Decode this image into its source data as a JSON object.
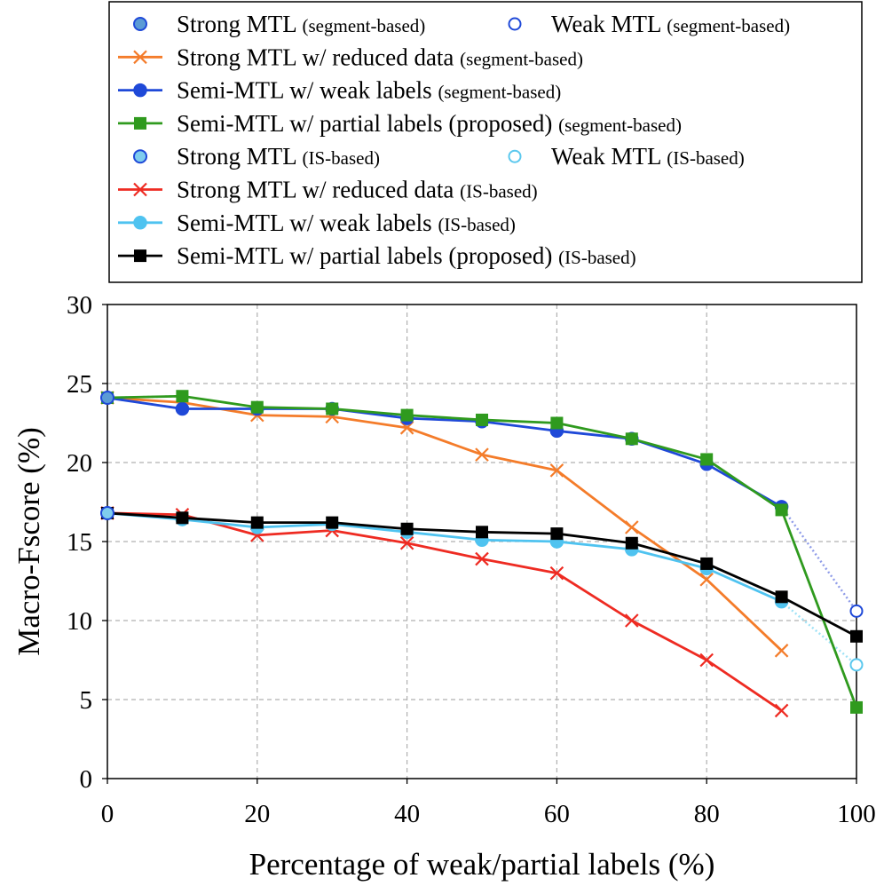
{
  "chart_data": {
    "type": "line",
    "title": "",
    "xlabel": "Percentage of weak/partial labels (%)",
    "ylabel": "Macro-Fscore (%)",
    "xlim": [
      0,
      100
    ],
    "ylim": [
      0,
      30
    ],
    "xticks": [
      0,
      20,
      40,
      60,
      80,
      100
    ],
    "yticks": [
      0,
      5,
      10,
      15,
      20,
      25,
      30
    ],
    "grid": true,
    "legend_position": "top (above plot)",
    "series": [
      {
        "name": "Strong MTL",
        "suffix": "(segment-based)",
        "color": "#5b9bd5",
        "marker": "circle-filled-outline",
        "line": "none",
        "x": [
          0
        ],
        "values": [
          24.1
        ]
      },
      {
        "name": "Weak MTL",
        "suffix": "(segment-based)",
        "color": "#1f49d8",
        "marker": "circle-open",
        "line": "none",
        "x": [
          100
        ],
        "values": [
          10.6
        ]
      },
      {
        "name": "Strong MTL w/ reduced data",
        "suffix": "(segment-based)",
        "color": "#f47c2a",
        "marker": "x",
        "line": "solid",
        "x": [
          0,
          10,
          20,
          30,
          40,
          50,
          60,
          70,
          80,
          90
        ],
        "values": [
          24.1,
          23.8,
          23.0,
          22.9,
          22.2,
          20.5,
          19.5,
          15.9,
          12.6,
          8.1
        ]
      },
      {
        "name": "Semi-MTL w/ weak labels",
        "suffix": "(segment-based)",
        "color": "#1f49d8",
        "marker": "circle",
        "line": "solid",
        "x": [
          0,
          10,
          20,
          30,
          40,
          50,
          60,
          70,
          80,
          90
        ],
        "values": [
          24.1,
          23.4,
          23.4,
          23.4,
          22.8,
          22.6,
          22.0,
          21.5,
          19.9,
          17.2
        ]
      },
      {
        "name": "Semi-MTL w/ partial labels (proposed)",
        "suffix": "(segment-based)",
        "color": "#2f9a1e",
        "marker": "square",
        "line": "solid",
        "x": [
          0,
          10,
          20,
          30,
          40,
          50,
          60,
          70,
          80,
          90,
          100
        ],
        "values": [
          24.1,
          24.2,
          23.5,
          23.4,
          23.0,
          22.7,
          22.5,
          21.5,
          20.2,
          17.0,
          4.5
        ]
      },
      {
        "name": "Strong MTL",
        "suffix": "(IS-based)",
        "color": "#7fcdee",
        "marker": "circle-filled-outline",
        "line": "none",
        "x": [
          0
        ],
        "values": [
          16.8
        ]
      },
      {
        "name": "Weak MTL",
        "suffix": "(IS-based)",
        "color": "#5bc8ee",
        "marker": "circle-open",
        "line": "none",
        "x": [
          100
        ],
        "values": [
          7.2
        ]
      },
      {
        "name": "Strong MTL w/ reduced data",
        "suffix": "(IS-based)",
        "color": "#ee2b22",
        "marker": "x",
        "line": "solid",
        "x": [
          0,
          10,
          20,
          30,
          40,
          50,
          60,
          70,
          80,
          90
        ],
        "values": [
          16.8,
          16.7,
          15.4,
          15.7,
          14.9,
          13.9,
          13.0,
          10.0,
          7.5,
          4.3
        ]
      },
      {
        "name": "Semi-MTL w/ weak labels",
        "suffix": "(IS-based)",
        "color": "#4fc3f0",
        "marker": "circle",
        "line": "solid",
        "x": [
          0,
          10,
          20,
          30,
          40,
          50,
          60,
          70,
          80,
          90
        ],
        "values": [
          16.8,
          16.4,
          15.9,
          16.1,
          15.6,
          15.1,
          15.0,
          14.5,
          13.3,
          11.2
        ]
      },
      {
        "name": "Semi-MTL w/ partial labels (proposed)",
        "suffix": "(IS-based)",
        "color": "#000000",
        "marker": "square",
        "line": "solid",
        "x": [
          0,
          10,
          20,
          30,
          40,
          50,
          60,
          70,
          80,
          90,
          100
        ],
        "values": [
          16.8,
          16.5,
          16.2,
          16.2,
          15.8,
          15.6,
          15.5,
          14.9,
          13.6,
          11.5,
          9.0
        ]
      }
    ],
    "connectors": [
      {
        "series_index": 3,
        "from": [
          0,
          24.1
        ],
        "to": [
          10,
          23.4
        ],
        "color": "#8f9ce8"
      },
      {
        "series_index": 3,
        "from": [
          90,
          17.2
        ],
        "to": [
          100,
          10.6
        ],
        "color": "#8f9ce8"
      },
      {
        "series_index": 4,
        "from": [
          0,
          24.1
        ],
        "to": [
          10,
          24.2
        ],
        "color": "#a6e58f"
      },
      {
        "series_index": 8,
        "from": [
          0,
          16.8
        ],
        "to": [
          10,
          16.4
        ],
        "color": "#9fe2f6"
      },
      {
        "series_index": 8,
        "from": [
          90,
          11.2
        ],
        "to": [
          100,
          7.2
        ],
        "color": "#9fe2f6"
      }
    ]
  }
}
